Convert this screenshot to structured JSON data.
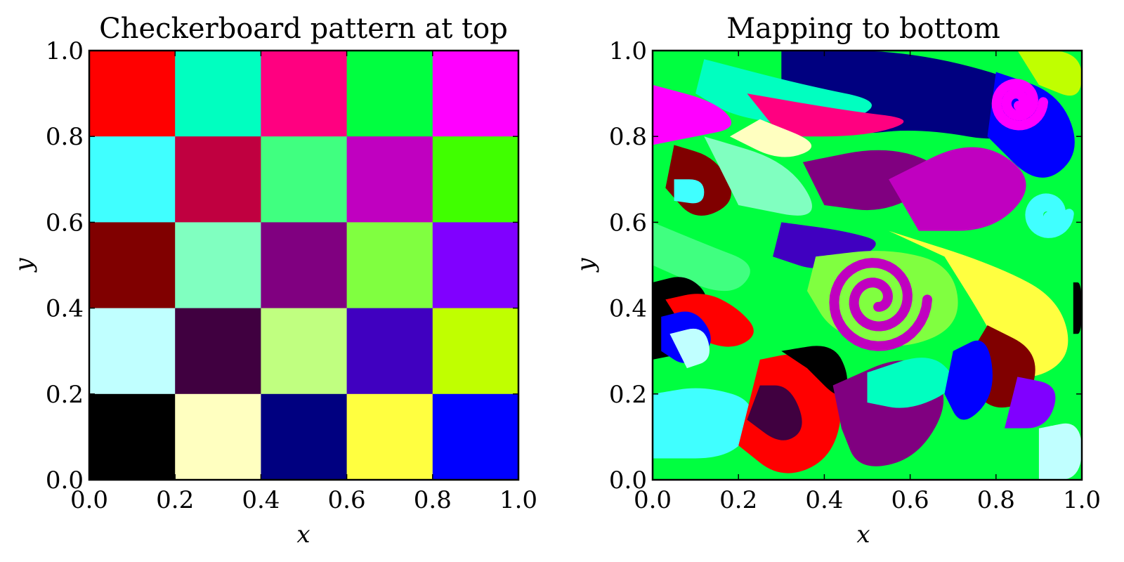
{
  "chart_data": [
    {
      "type": "heatmap",
      "title": "Checkerboard pattern at top",
      "xlabel": "x",
      "ylabel": "y",
      "xlim": [
        0.0,
        1.0
      ],
      "ylim": [
        0.0,
        1.0
      ],
      "xticks": [
        "0.0",
        "0.2",
        "0.4",
        "0.6",
        "0.8",
        "1.0"
      ],
      "yticks": [
        "0.0",
        "0.2",
        "0.4",
        "0.6",
        "0.8",
        "1.0"
      ],
      "grid": false,
      "cell_size": 0.2,
      "cells": [
        {
          "x0": 0.0,
          "y0": 0.8,
          "color": "#ff0000"
        },
        {
          "x0": 0.2,
          "y0": 0.8,
          "color": "#00ffc0"
        },
        {
          "x0": 0.4,
          "y0": 0.8,
          "color": "#ff0080"
        },
        {
          "x0": 0.6,
          "y0": 0.8,
          "color": "#00ff40"
        },
        {
          "x0": 0.8,
          "y0": 0.8,
          "color": "#ff00ff"
        },
        {
          "x0": 0.0,
          "y0": 0.6,
          "color": "#40ffff"
        },
        {
          "x0": 0.2,
          "y0": 0.6,
          "color": "#c00040"
        },
        {
          "x0": 0.4,
          "y0": 0.6,
          "color": "#40ff80"
        },
        {
          "x0": 0.6,
          "y0": 0.6,
          "color": "#c000c0"
        },
        {
          "x0": 0.8,
          "y0": 0.6,
          "color": "#40ff00"
        },
        {
          "x0": 0.0,
          "y0": 0.4,
          "color": "#800000"
        },
        {
          "x0": 0.2,
          "y0": 0.4,
          "color": "#80ffc0"
        },
        {
          "x0": 0.4,
          "y0": 0.4,
          "color": "#800080"
        },
        {
          "x0": 0.6,
          "y0": 0.4,
          "color": "#80ff40"
        },
        {
          "x0": 0.8,
          "y0": 0.4,
          "color": "#8000ff"
        },
        {
          "x0": 0.0,
          "y0": 0.2,
          "color": "#c0ffff"
        },
        {
          "x0": 0.2,
          "y0": 0.2,
          "color": "#400040"
        },
        {
          "x0": 0.4,
          "y0": 0.2,
          "color": "#c0ff80"
        },
        {
          "x0": 0.6,
          "y0": 0.2,
          "color": "#4000c0"
        },
        {
          "x0": 0.8,
          "y0": 0.2,
          "color": "#c0ff00"
        },
        {
          "x0": 0.0,
          "y0": 0.0,
          "color": "#000000"
        },
        {
          "x0": 0.2,
          "y0": 0.0,
          "color": "#ffffc0"
        },
        {
          "x0": 0.4,
          "y0": 0.0,
          "color": "#000080"
        },
        {
          "x0": 0.6,
          "y0": 0.0,
          "color": "#ffff40"
        },
        {
          "x0": 0.8,
          "y0": 0.0,
          "color": "#0000ff"
        }
      ]
    },
    {
      "type": "heatmap",
      "title": "Mapping to bottom",
      "xlabel": "x",
      "ylabel": "y",
      "xlim": [
        0.0,
        1.0
      ],
      "ylim": [
        0.0,
        1.0
      ],
      "xticks": [
        "0.0",
        "0.2",
        "0.4",
        "0.6",
        "0.8",
        "1.0"
      ],
      "yticks": [
        "0.0",
        "0.2",
        "0.4",
        "0.6",
        "0.8",
        "1.0"
      ],
      "grid": false,
      "background": "#00ff40",
      "regions": [
        {
          "color": "#000080",
          "points": [
            [
              0.3,
              1.0
            ],
            [
              0.62,
              1.0
            ],
            [
              0.95,
              0.9
            ],
            [
              0.85,
              0.78
            ],
            [
              0.62,
              0.82
            ],
            [
              0.45,
              0.8
            ],
            [
              0.3,
              0.88
            ]
          ]
        },
        {
          "color": "#00ffc0",
          "points": [
            [
              0.12,
              0.98
            ],
            [
              0.35,
              0.92
            ],
            [
              0.55,
              0.88
            ],
            [
              0.42,
              0.82
            ],
            [
              0.2,
              0.84
            ],
            [
              0.1,
              0.9
            ]
          ]
        },
        {
          "color": "#ff0080",
          "points": [
            [
              0.22,
              0.9
            ],
            [
              0.45,
              0.86
            ],
            [
              0.62,
              0.84
            ],
            [
              0.5,
              0.8
            ],
            [
              0.3,
              0.8
            ]
          ]
        },
        {
          "color": "#ffffc0",
          "points": [
            [
              0.25,
              0.84
            ],
            [
              0.4,
              0.78
            ],
            [
              0.3,
              0.74
            ],
            [
              0.18,
              0.8
            ]
          ]
        },
        {
          "color": "#ff00ff",
          "points": [
            [
              0.0,
              0.92
            ],
            [
              0.15,
              0.88
            ],
            [
              0.2,
              0.82
            ],
            [
              0.1,
              0.8
            ],
            [
              0.0,
              0.78
            ]
          ]
        },
        {
          "color": "#800000",
          "points": [
            [
              0.05,
              0.78
            ],
            [
              0.15,
              0.75
            ],
            [
              0.2,
              0.65
            ],
            [
              0.1,
              0.6
            ],
            [
              0.03,
              0.68
            ]
          ]
        },
        {
          "color": "#40ffff",
          "points": [
            [
              0.05,
              0.7
            ],
            [
              0.12,
              0.7
            ],
            [
              0.12,
              0.64
            ],
            [
              0.05,
              0.65
            ]
          ]
        },
        {
          "color": "#80ffc0",
          "points": [
            [
              0.12,
              0.8
            ],
            [
              0.32,
              0.74
            ],
            [
              0.4,
              0.6
            ],
            [
              0.2,
              0.64
            ]
          ]
        },
        {
          "color": "#800080",
          "points": [
            [
              0.35,
              0.74
            ],
            [
              0.55,
              0.78
            ],
            [
              0.7,
              0.72
            ],
            [
              0.55,
              0.62
            ],
            [
              0.4,
              0.64
            ]
          ]
        },
        {
          "color": "#c000c0",
          "points": [
            [
              0.55,
              0.7
            ],
            [
              0.75,
              0.8
            ],
            [
              0.9,
              0.7
            ],
            [
              0.8,
              0.58
            ],
            [
              0.62,
              0.58
            ]
          ]
        },
        {
          "color": "#0000ff",
          "points": [
            [
              0.8,
              0.95
            ],
            [
              0.95,
              0.9
            ],
            [
              1.0,
              0.76
            ],
            [
              0.9,
              0.68
            ],
            [
              0.78,
              0.8
            ]
          ]
        },
        {
          "color": "#c0ff00",
          "points": [
            [
              0.85,
              1.0
            ],
            [
              1.0,
              1.0
            ],
            [
              1.0,
              0.88
            ],
            [
              0.9,
              0.92
            ]
          ]
        },
        {
          "color": "#40ff80",
          "points": [
            [
              0.0,
              0.6
            ],
            [
              0.12,
              0.55
            ],
            [
              0.25,
              0.5
            ],
            [
              0.18,
              0.42
            ],
            [
              0.0,
              0.5
            ]
          ]
        },
        {
          "color": "#4000c0",
          "points": [
            [
              0.3,
              0.6
            ],
            [
              0.45,
              0.58
            ],
            [
              0.55,
              0.55
            ],
            [
              0.4,
              0.48
            ],
            [
              0.28,
              0.52
            ]
          ]
        },
        {
          "color": "#80ff40",
          "points": [
            [
              0.38,
              0.52
            ],
            [
              0.55,
              0.54
            ],
            [
              0.7,
              0.5
            ],
            [
              0.72,
              0.36
            ],
            [
              0.58,
              0.3
            ],
            [
              0.42,
              0.34
            ],
            [
              0.36,
              0.44
            ]
          ]
        },
        {
          "color": "#ffff40",
          "points": [
            [
              0.55,
              0.58
            ],
            [
              0.8,
              0.5
            ],
            [
              0.95,
              0.42
            ],
            [
              0.98,
              0.28
            ],
            [
              0.85,
              0.22
            ],
            [
              0.78,
              0.36
            ],
            [
              0.68,
              0.52
            ]
          ]
        },
        {
          "color": "#800000",
          "points": [
            [
              0.78,
              0.36
            ],
            [
              0.9,
              0.3
            ],
            [
              0.88,
              0.18
            ],
            [
              0.78,
              0.16
            ],
            [
              0.72,
              0.26
            ]
          ]
        },
        {
          "color": "#8000ff",
          "points": [
            [
              0.85,
              0.24
            ],
            [
              0.95,
              0.22
            ],
            [
              0.92,
              0.12
            ],
            [
              0.82,
              0.12
            ]
          ]
        },
        {
          "color": "#000000",
          "points": [
            [
              0.0,
              0.46
            ],
            [
              0.08,
              0.48
            ],
            [
              0.14,
              0.42
            ],
            [
              0.1,
              0.3
            ],
            [
              0.0,
              0.28
            ]
          ]
        },
        {
          "color": "#ff0000",
          "points": [
            [
              0.03,
              0.42
            ],
            [
              0.12,
              0.44
            ],
            [
              0.2,
              0.4
            ],
            [
              0.25,
              0.34
            ],
            [
              0.18,
              0.3
            ],
            [
              0.08,
              0.34
            ]
          ]
        },
        {
          "color": "#0000ff",
          "points": [
            [
              0.02,
              0.38
            ],
            [
              0.1,
              0.4
            ],
            [
              0.15,
              0.32
            ],
            [
              0.08,
              0.26
            ],
            [
              0.02,
              0.3
            ]
          ]
        },
        {
          "color": "#c0ffff",
          "points": [
            [
              0.04,
              0.34
            ],
            [
              0.12,
              0.36
            ],
            [
              0.14,
              0.28
            ],
            [
              0.08,
              0.26
            ]
          ]
        },
        {
          "color": "#40ffff",
          "points": [
            [
              0.0,
              0.2
            ],
            [
              0.12,
              0.22
            ],
            [
              0.25,
              0.18
            ],
            [
              0.2,
              0.05
            ],
            [
              0.0,
              0.05
            ]
          ]
        },
        {
          "color": "#ff0000",
          "points": [
            [
              0.25,
              0.28
            ],
            [
              0.35,
              0.3
            ],
            [
              0.45,
              0.2
            ],
            [
              0.42,
              0.05
            ],
            [
              0.3,
              0.0
            ],
            [
              0.2,
              0.08
            ]
          ]
        },
        {
          "color": "#400040",
          "points": [
            [
              0.25,
              0.22
            ],
            [
              0.32,
              0.22
            ],
            [
              0.36,
              0.12
            ],
            [
              0.3,
              0.08
            ],
            [
              0.22,
              0.14
            ]
          ]
        },
        {
          "color": "#000000",
          "points": [
            [
              0.3,
              0.3
            ],
            [
              0.42,
              0.32
            ],
            [
              0.46,
              0.24
            ],
            [
              0.44,
              0.18
            ],
            [
              0.36,
              0.26
            ]
          ]
        },
        {
          "color": "#800080",
          "points": [
            [
              0.42,
              0.22
            ],
            [
              0.6,
              0.3
            ],
            [
              0.7,
              0.2
            ],
            [
              0.62,
              0.05
            ],
            [
              0.48,
              0.02
            ],
            [
              0.44,
              0.12
            ]
          ]
        },
        {
          "color": "#00ffc0",
          "points": [
            [
              0.5,
              0.25
            ],
            [
              0.65,
              0.3
            ],
            [
              0.72,
              0.22
            ],
            [
              0.6,
              0.16
            ],
            [
              0.5,
              0.18
            ]
          ]
        },
        {
          "color": "#0000ff",
          "points": [
            [
              0.7,
              0.3
            ],
            [
              0.78,
              0.34
            ],
            [
              0.8,
              0.2
            ],
            [
              0.72,
              0.12
            ],
            [
              0.68,
              0.2
            ]
          ]
        },
        {
          "color": "#c0ffff",
          "points": [
            [
              0.9,
              0.12
            ],
            [
              1.0,
              0.14
            ],
            [
              1.0,
              0.0
            ],
            [
              0.9,
              0.0
            ]
          ]
        },
        {
          "color": "#000000",
          "points": [
            [
              0.98,
              0.46
            ],
            [
              1.0,
              0.46
            ],
            [
              1.0,
              0.34
            ],
            [
              0.98,
              0.34
            ]
          ]
        }
      ],
      "spirals": [
        {
          "cx": 0.52,
          "cy": 0.42,
          "r": 0.12,
          "color": "#c000c0"
        },
        {
          "cx": 0.85,
          "cy": 0.88,
          "r": 0.06,
          "color": "#ff00ff"
        },
        {
          "cx": 0.92,
          "cy": 0.62,
          "r": 0.05,
          "color": "#40ffff"
        }
      ]
    }
  ]
}
